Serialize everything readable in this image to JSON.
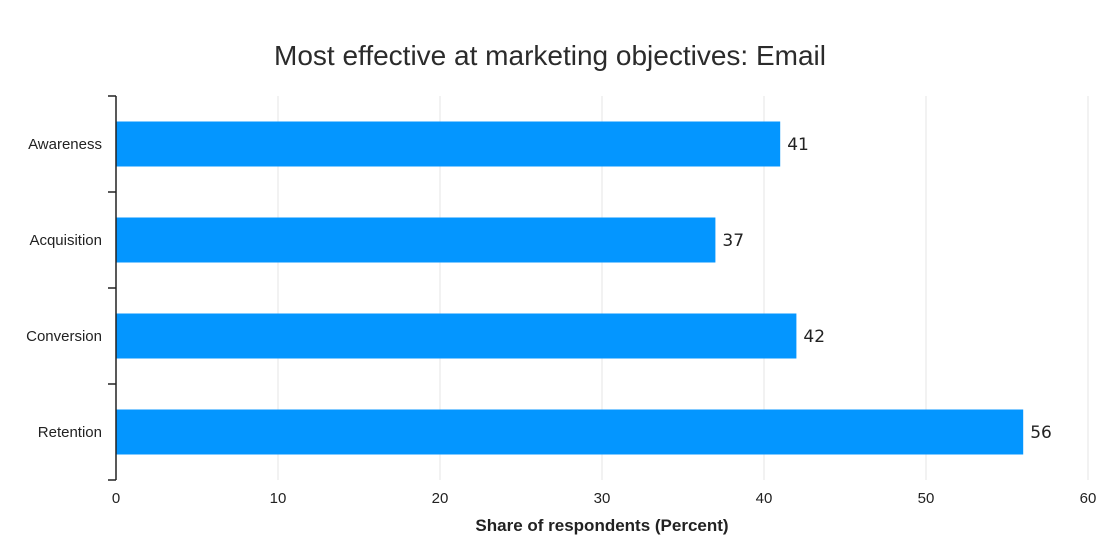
{
  "chart_data": {
    "type": "bar",
    "orientation": "horizontal",
    "title": "Most effective at marketing objectives: Email",
    "categories": [
      "Awareness",
      "Acquisition",
      "Conversion",
      "Retention"
    ],
    "values": [
      41,
      37,
      42,
      56
    ],
    "xlabel": "Share of respondents (Percent)",
    "ylabel": "",
    "xlim": [
      0,
      60
    ],
    "xticks": [
      0,
      10,
      20,
      30,
      40,
      50,
      60
    ],
    "grid": true,
    "legend": "none",
    "bar_color": "#0496ff"
  }
}
